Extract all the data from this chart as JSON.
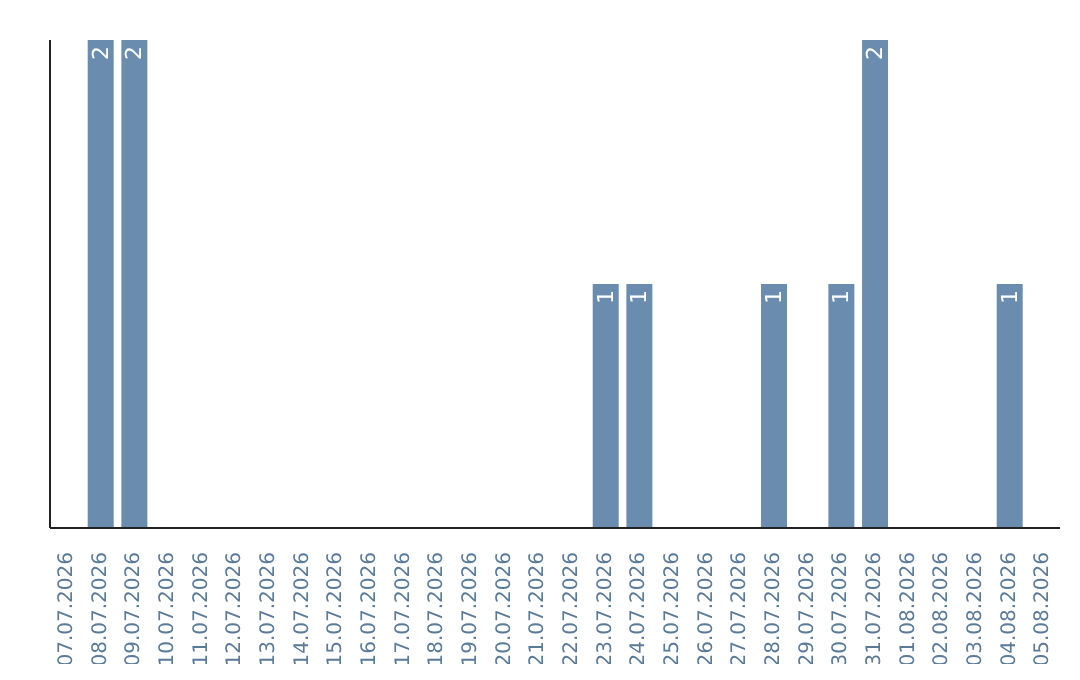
{
  "chart_data": {
    "type": "bar",
    "categories": [
      "07.07.2026",
      "08.07.2026",
      "09.07.2026",
      "10.07.2026",
      "11.07.2026",
      "12.07.2026",
      "13.07.2026",
      "14.07.2026",
      "15.07.2026",
      "16.07.2026",
      "17.07.2026",
      "18.07.2026",
      "19.07.2026",
      "20.07.2026",
      "21.07.2026",
      "22.07.2026",
      "23.07.2026",
      "24.07.2026",
      "25.07.2026",
      "26.07.2026",
      "27.07.2026",
      "28.07.2026",
      "29.07.2026",
      "30.07.2026",
      "31.07.2026",
      "01.08.2026",
      "02.08.2026",
      "03.08.2026",
      "04.08.2026",
      "05.08.2026"
    ],
    "values": [
      0,
      2,
      2,
      0,
      0,
      0,
      0,
      0,
      0,
      0,
      0,
      0,
      0,
      0,
      0,
      0,
      1,
      1,
      0,
      0,
      0,
      1,
      0,
      1,
      2,
      0,
      0,
      0,
      1,
      0
    ],
    "value_labels": [
      null,
      "2",
      "2",
      null,
      null,
      null,
      null,
      null,
      null,
      null,
      null,
      null,
      null,
      null,
      null,
      null,
      "1",
      "1",
      null,
      null,
      null,
      "1",
      null,
      "1",
      "2",
      null,
      null,
      null,
      "1",
      null
    ],
    "color": "#6a8caf",
    "tick_labels": "x"
  }
}
